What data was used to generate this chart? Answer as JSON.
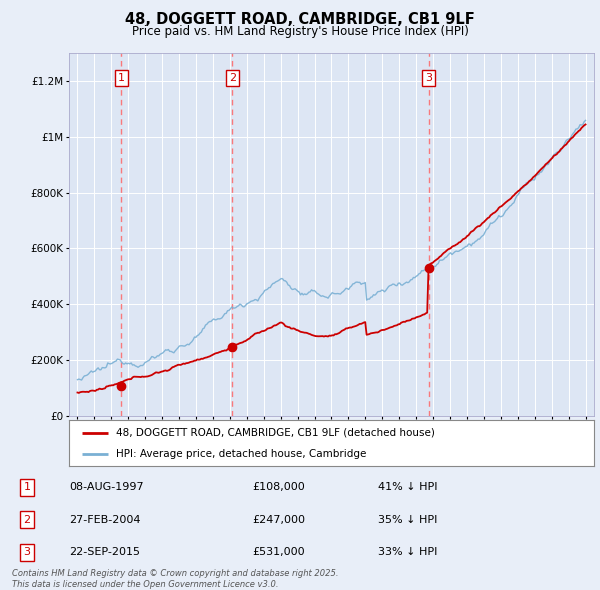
{
  "title": "48, DOGGETT ROAD, CAMBRIDGE, CB1 9LF",
  "subtitle": "Price paid vs. HM Land Registry's House Price Index (HPI)",
  "bg_color": "#e8eef8",
  "plot_bg_color": "#dde6f4",
  "grid_color": "#ffffff",
  "purchases": [
    {
      "date_idx": 1997.6,
      "price": 108000,
      "label": "1"
    },
    {
      "date_idx": 2004.15,
      "price": 247000,
      "label": "2"
    },
    {
      "date_idx": 2015.73,
      "price": 531000,
      "label": "3"
    }
  ],
  "legend_entry1": "48, DOGGETT ROAD, CAMBRIDGE, CB1 9LF (detached house)",
  "legend_entry2": "HPI: Average price, detached house, Cambridge",
  "table": [
    {
      "num": "1",
      "date": "08-AUG-1997",
      "price": "£108,000",
      "pct": "41% ↓ HPI"
    },
    {
      "num": "2",
      "date": "27-FEB-2004",
      "price": "£247,000",
      "pct": "35% ↓ HPI"
    },
    {
      "num": "3",
      "date": "22-SEP-2015",
      "price": "£531,000",
      "pct": "33% ↓ HPI"
    }
  ],
  "footer": "Contains HM Land Registry data © Crown copyright and database right 2025.\nThis data is licensed under the Open Government Licence v3.0.",
  "ylim": [
    0,
    1300000
  ],
  "xlim": [
    1994.5,
    2025.5
  ],
  "red_line_color": "#cc0000",
  "blue_line_color": "#7ab0d4",
  "marker_color": "#cc0000",
  "dashed_color": "#ff6666"
}
